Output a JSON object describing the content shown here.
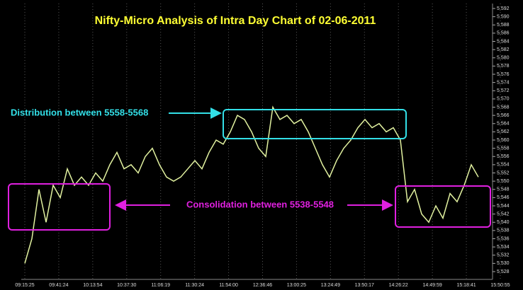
{
  "chart_data": {
    "type": "line",
    "title": "Nifty-Micro Analysis of Intra Day Chart of 02-06-2011",
    "title_color": "#ffff33",
    "annotations": [
      {
        "text": "Distribution between 5558-5568",
        "color": "#33e0e8"
      },
      {
        "text": "Consolidation between 5538-5548",
        "color": "#e020e0"
      }
    ],
    "xticks": [
      "09:15:25",
      "09:41:24",
      "10:13:54",
      "10:37:30",
      "11:06:19",
      "11:30:24",
      "11:54:00",
      "12:36:46",
      "13:00:25",
      "13:24:49",
      "13:50:17",
      "14:26:22",
      "14:49:59",
      "15:18:41",
      "15:50:55"
    ],
    "series": [
      {
        "color": "#e2f2a0",
        "values": [
          5530,
          5536,
          5548,
          5540,
          5549,
          5546,
          5553,
          5549,
          5551,
          5549,
          5552,
          5550,
          5554,
          5557,
          5553,
          5554,
          5552,
          5556,
          5558,
          5554,
          5551,
          5550,
          5551,
          5553,
          5555,
          5553,
          5557,
          5560,
          5559,
          5562,
          5566,
          5565,
          5562,
          5558,
          5556,
          5568,
          5565,
          5566,
          5564,
          5565,
          5562,
          5558,
          5554,
          5551,
          5555,
          5558,
          5560,
          5563,
          5565,
          5563,
          5564,
          5562,
          5563,
          5560,
          5545,
          5548,
          5542,
          5540,
          5544,
          5541,
          5547,
          5545,
          5549,
          5554,
          5551
        ]
      }
    ],
    "ylim": [
      5528,
      5592
    ],
    "yticks": [
      {
        "value": 5528,
        "label": "5,528"
      },
      {
        "value": 5530,
        "label": "5,530"
      },
      {
        "value": 5532,
        "label": "5,532"
      },
      {
        "value": 5534,
        "label": "5,534"
      },
      {
        "value": 5536,
        "label": "5,536"
      },
      {
        "value": 5538,
        "label": "5,538"
      },
      {
        "value": 5540,
        "label": "5,540"
      },
      {
        "value": 5542,
        "label": "5,542"
      },
      {
        "value": 5544,
        "label": "5,544"
      },
      {
        "value": 5546,
        "label": "5,546"
      },
      {
        "value": 5548,
        "label": "5,548"
      },
      {
        "value": 5550,
        "label": "5,550"
      },
      {
        "value": 5552,
        "label": "5,552"
      },
      {
        "value": 5554,
        "label": "5,554"
      },
      {
        "value": 5556,
        "label": "5,556"
      },
      {
        "value": 5558,
        "label": "5,558"
      },
      {
        "value": 5560,
        "label": "5,560"
      },
      {
        "value": 5562,
        "label": "5,562"
      },
      {
        "value": 5564,
        "label": "5,564"
      },
      {
        "value": 5566,
        "label": "5,566"
      },
      {
        "value": 5568,
        "label": "5,568"
      },
      {
        "value": 5570,
        "label": "5,570"
      },
      {
        "value": 5572,
        "label": "5,572"
      },
      {
        "value": 5574,
        "label": "5,574"
      },
      {
        "value": 5576,
        "label": "5,576"
      },
      {
        "value": 5578,
        "label": "5,578"
      },
      {
        "value": 5580,
        "label": "5,580"
      },
      {
        "value": 5582,
        "label": "5,582"
      },
      {
        "value": 5584,
        "label": "5,584"
      },
      {
        "value": 5586,
        "label": "5,586"
      },
      {
        "value": 5588,
        "label": "5,588"
      },
      {
        "value": 5590,
        "label": "5,590"
      },
      {
        "value": 5592,
        "label": "5,592"
      }
    ],
    "grid": true
  }
}
